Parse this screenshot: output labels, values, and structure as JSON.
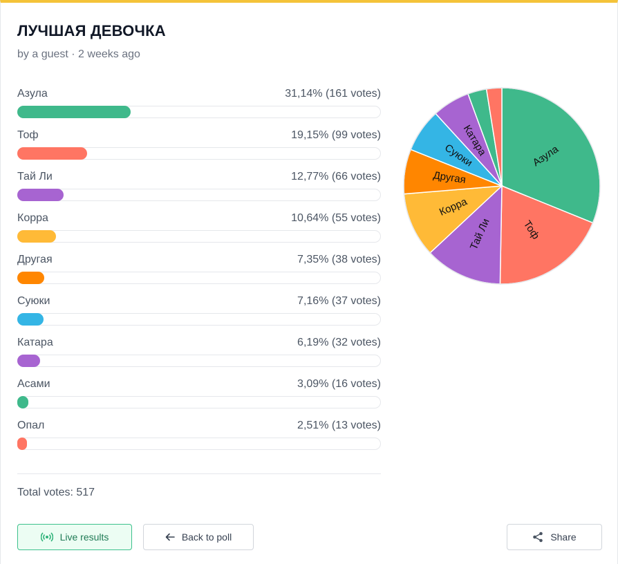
{
  "poll": {
    "title": "ЛУЧШАЯ ДЕВОЧКА",
    "meta": "by a guest · 2 weeks ago",
    "total_votes": "Total votes: 517"
  },
  "options": [
    {
      "label": "Азула",
      "percent_text": "31,14% (161 votes)",
      "percent": 31.14,
      "votes": 161,
      "color": "#3fb98b"
    },
    {
      "label": "Тоф",
      "percent_text": "19,15% (99 votes)",
      "percent": 19.15,
      "votes": 99,
      "color": "#ff7563"
    },
    {
      "label": "Тай Ли",
      "percent_text": "12,77% (66 votes)",
      "percent": 12.77,
      "votes": 66,
      "color": "#a764d1"
    },
    {
      "label": "Корра",
      "percent_text": "10,64% (55 votes)",
      "percent": 10.64,
      "votes": 55,
      "color": "#ffba37"
    },
    {
      "label": "Другая",
      "percent_text": "7,35% (38 votes)",
      "percent": 7.35,
      "votes": 38,
      "color": "#ff8600"
    },
    {
      "label": "Суюки",
      "percent_text": "7,16% (37 votes)",
      "percent": 7.16,
      "votes": 37,
      "color": "#34b5e5"
    },
    {
      "label": "Катара",
      "percent_text": "6,19% (32 votes)",
      "percent": 6.19,
      "votes": 32,
      "color": "#a764d1"
    },
    {
      "label": "Асами",
      "percent_text": "3,09% (16 votes)",
      "percent": 3.09,
      "votes": 16,
      "color": "#3fb98b"
    },
    {
      "label": "Опал",
      "percent_text": "2,51% (13 votes)",
      "percent": 2.51,
      "votes": 13,
      "color": "#ff7563"
    }
  ],
  "buttons": {
    "live": "Live results",
    "back": "Back to poll",
    "share": "Share"
  },
  "icons": {
    "live": "broadcast-icon",
    "back": "arrow-left-icon",
    "share": "share-icon"
  },
  "chart_data": {
    "type": "pie",
    "categories": [
      "Азула",
      "Тоф",
      "Тай Ли",
      "Корра",
      "Другая",
      "Суюки",
      "Катара",
      "Асами",
      "Опал"
    ],
    "values": [
      161,
      99,
      66,
      55,
      38,
      37,
      32,
      16,
      13
    ],
    "colors": [
      "#3fb98b",
      "#ff7563",
      "#a764d1",
      "#ffba37",
      "#ff8600",
      "#34b5e5",
      "#a764d1",
      "#3fb98b",
      "#ff7563"
    ],
    "slice_labels": [
      "Азула",
      "Тоф",
      "Тай Ли",
      "Корра",
      "Другая",
      "Суюки",
      "Катара",
      "",
      ""
    ]
  }
}
